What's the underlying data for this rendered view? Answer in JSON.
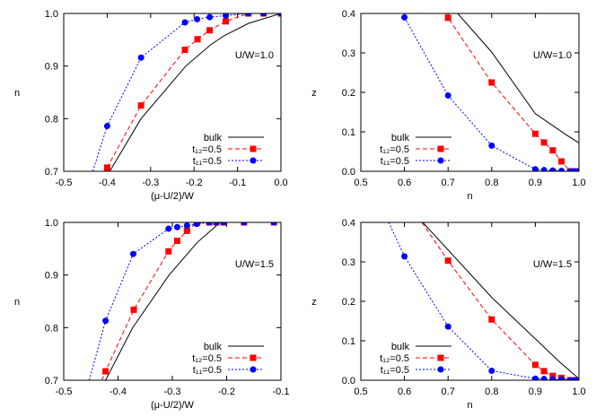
{
  "chart_data": [
    {
      "type": "line",
      "annotation": "U/W=1.0",
      "xlabel": "(μ-U/2)/W",
      "ylabel": "n",
      "xlim": [
        -0.5,
        0.0
      ],
      "ylim": [
        0.7,
        1.0
      ],
      "xticks": [
        "-0.5",
        "-0.4",
        "-0.3",
        "-0.2",
        "-0.1",
        "0.0"
      ],
      "yticks": [
        "0.7",
        "0.8",
        "0.9",
        "1.0"
      ],
      "grid": false,
      "legend": "bottom-right",
      "series": [
        {
          "name": "bulk",
          "color": "#000000",
          "style": "solid",
          "marker": "none",
          "x": [
            -0.394,
            -0.322,
            -0.219,
            -0.161,
            -0.13,
            -0.075,
            0.0
          ],
          "y": [
            0.7,
            0.8,
            0.9,
            0.941,
            0.958,
            0.981,
            1.0
          ]
        },
        {
          "name": "t₁₂=0.5",
          "color": "#ff0000",
          "style": "dashed",
          "marker": "square",
          "x": [
            -0.4,
            -0.322,
            -0.221,
            -0.192,
            -0.164,
            -0.127,
            -0.075,
            -0.04,
            0.0
          ],
          "y": [
            0.707,
            0.825,
            0.931,
            0.951,
            0.968,
            0.985,
            1.0,
            1.0,
            1.0
          ]
        },
        {
          "name": "t₁₁=0.5",
          "color": "#0000ff",
          "style": "dotted",
          "marker": "circle",
          "x": [
            -0.4,
            -0.322,
            -0.221,
            -0.193,
            -0.164,
            -0.127,
            -0.075,
            -0.04,
            0.0
          ],
          "y": [
            0.786,
            0.916,
            0.983,
            0.989,
            0.993,
            0.996,
            1.0,
            1.0,
            1.0
          ],
          "lead": [
            -0.433,
            0.7
          ]
        }
      ]
    },
    {
      "type": "line",
      "annotation": "U/W=1.0",
      "xlabel": "n",
      "ylabel": "z",
      "xlim": [
        0.5,
        1.0
      ],
      "ylim": [
        0.0,
        0.4
      ],
      "xticks": [
        "0.5",
        "0.6",
        "0.7",
        "0.8",
        "0.9",
        "1.0"
      ],
      "yticks": [
        "0.0",
        "0.1",
        "0.2",
        "0.3",
        "0.4"
      ],
      "grid": false,
      "legend": "bottom-left",
      "series": [
        {
          "name": "bulk",
          "color": "#000000",
          "style": "solid",
          "marker": "none",
          "x": [
            0.722,
            0.8,
            0.9,
            0.97,
            1.0
          ],
          "y": [
            0.4,
            0.302,
            0.146,
            0.093,
            0.072
          ]
        },
        {
          "name": "t₁₂=0.5",
          "color": "#ff0000",
          "style": "dashed",
          "marker": "square",
          "x": [
            0.7,
            0.8,
            0.9,
            0.92,
            0.94,
            0.96,
            0.98,
            0.99,
            1.0
          ],
          "y": [
            0.389,
            0.225,
            0.095,
            0.073,
            0.053,
            0.025,
            0.0,
            0.0,
            0.0
          ],
          "lead": [
            0.694,
            0.4
          ]
        },
        {
          "name": "t₁₁=0.5",
          "color": "#0000ff",
          "style": "dotted",
          "marker": "circle",
          "x": [
            0.6,
            0.7,
            0.8,
            0.9,
            0.92,
            0.94,
            0.96,
            0.98,
            0.99,
            1.0
          ],
          "y": [
            0.39,
            0.192,
            0.065,
            0.005,
            0.003,
            0.002,
            0.001,
            0.0,
            0.0,
            0.0
          ]
        }
      ]
    },
    {
      "type": "line",
      "annotation": "U/W=1.5",
      "xlabel": "(μ-U/2)/W",
      "ylabel": "n",
      "xlim": [
        -0.5,
        -0.1
      ],
      "ylim": [
        0.7,
        1.0
      ],
      "xticks": [
        "-0.5",
        "-0.4",
        "-0.3",
        "-0.2",
        "-0.1"
      ],
      "yticks": [
        "0.7",
        "0.8",
        "0.9",
        "1.0"
      ],
      "grid": false,
      "legend": "bottom-right",
      "series": [
        {
          "name": "bulk",
          "color": "#000000",
          "style": "solid",
          "marker": "none",
          "x": [
            -0.423,
            -0.373,
            -0.306,
            -0.254,
            -0.212,
            -0.1
          ],
          "y": [
            0.7,
            0.8,
            0.9,
            0.962,
            1.0,
            1.0
          ]
        },
        {
          "name": "t₁₂=0.5",
          "color": "#ff0000",
          "style": "dashed",
          "marker": "square",
          "x": [
            -0.423,
            -0.371,
            -0.307,
            -0.291,
            -0.273,
            -0.255,
            -0.232,
            -0.219,
            -0.206,
            -0.168,
            -0.113
          ],
          "y": [
            0.717,
            0.834,
            0.945,
            0.965,
            0.984,
            0.999,
            1.0,
            1.0,
            1.0,
            1.0,
            1.0
          ],
          "lead": [
            -0.43,
            0.7
          ]
        },
        {
          "name": "t₁₁=0.5",
          "color": "#0000ff",
          "style": "dotted",
          "marker": "circle",
          "x": [
            -0.423,
            -0.372,
            -0.307,
            -0.291,
            -0.273,
            -0.255,
            -0.232,
            -0.219,
            -0.206,
            -0.168,
            -0.113
          ],
          "y": [
            0.813,
            0.94,
            0.988,
            0.991,
            0.994,
            0.997,
            1.0,
            1.0,
            1.0,
            1.0,
            1.0
          ],
          "lead": [
            -0.453,
            0.7
          ]
        }
      ]
    },
    {
      "type": "line",
      "annotation": "U/W=1.5",
      "xlabel": "n",
      "ylabel": "z",
      "xlim": [
        0.5,
        1.0
      ],
      "ylim": [
        0.0,
        0.4
      ],
      "xticks": [
        "0.5",
        "0.6",
        "0.7",
        "0.8",
        "0.9",
        "1.0"
      ],
      "yticks": [
        "0.0",
        "0.1",
        "0.2",
        "0.3",
        "0.4"
      ],
      "grid": false,
      "legend": "bottom-left",
      "series": [
        {
          "name": "bulk",
          "color": "#000000",
          "style": "solid",
          "marker": "none",
          "x": [
            0.642,
            0.8,
            0.957,
            1.0
          ],
          "y": [
            0.4,
            0.21,
            0.045,
            0.004
          ]
        },
        {
          "name": "t₁₂=0.5",
          "color": "#ff0000",
          "style": "dashed",
          "marker": "square",
          "x": [
            0.7,
            0.8,
            0.9,
            0.92,
            0.94,
            0.96,
            0.98,
            0.99,
            1.0
          ],
          "y": [
            0.303,
            0.154,
            0.039,
            0.023,
            0.011,
            0.006,
            0.0,
            0.0,
            0.0
          ],
          "lead": [
            0.64,
            0.4
          ]
        },
        {
          "name": "t₁₁=0.5",
          "color": "#0000ff",
          "style": "dotted",
          "marker": "circle",
          "x": [
            0.6,
            0.7,
            0.8,
            0.9,
            0.92,
            0.94,
            0.96,
            0.98,
            0.99,
            1.0
          ],
          "y": [
            0.314,
            0.136,
            0.024,
            0.004,
            0.003,
            0.002,
            0.002,
            0.0,
            0.0,
            0.0
          ],
          "lead": [
            0.564,
            0.4
          ]
        }
      ]
    }
  ]
}
